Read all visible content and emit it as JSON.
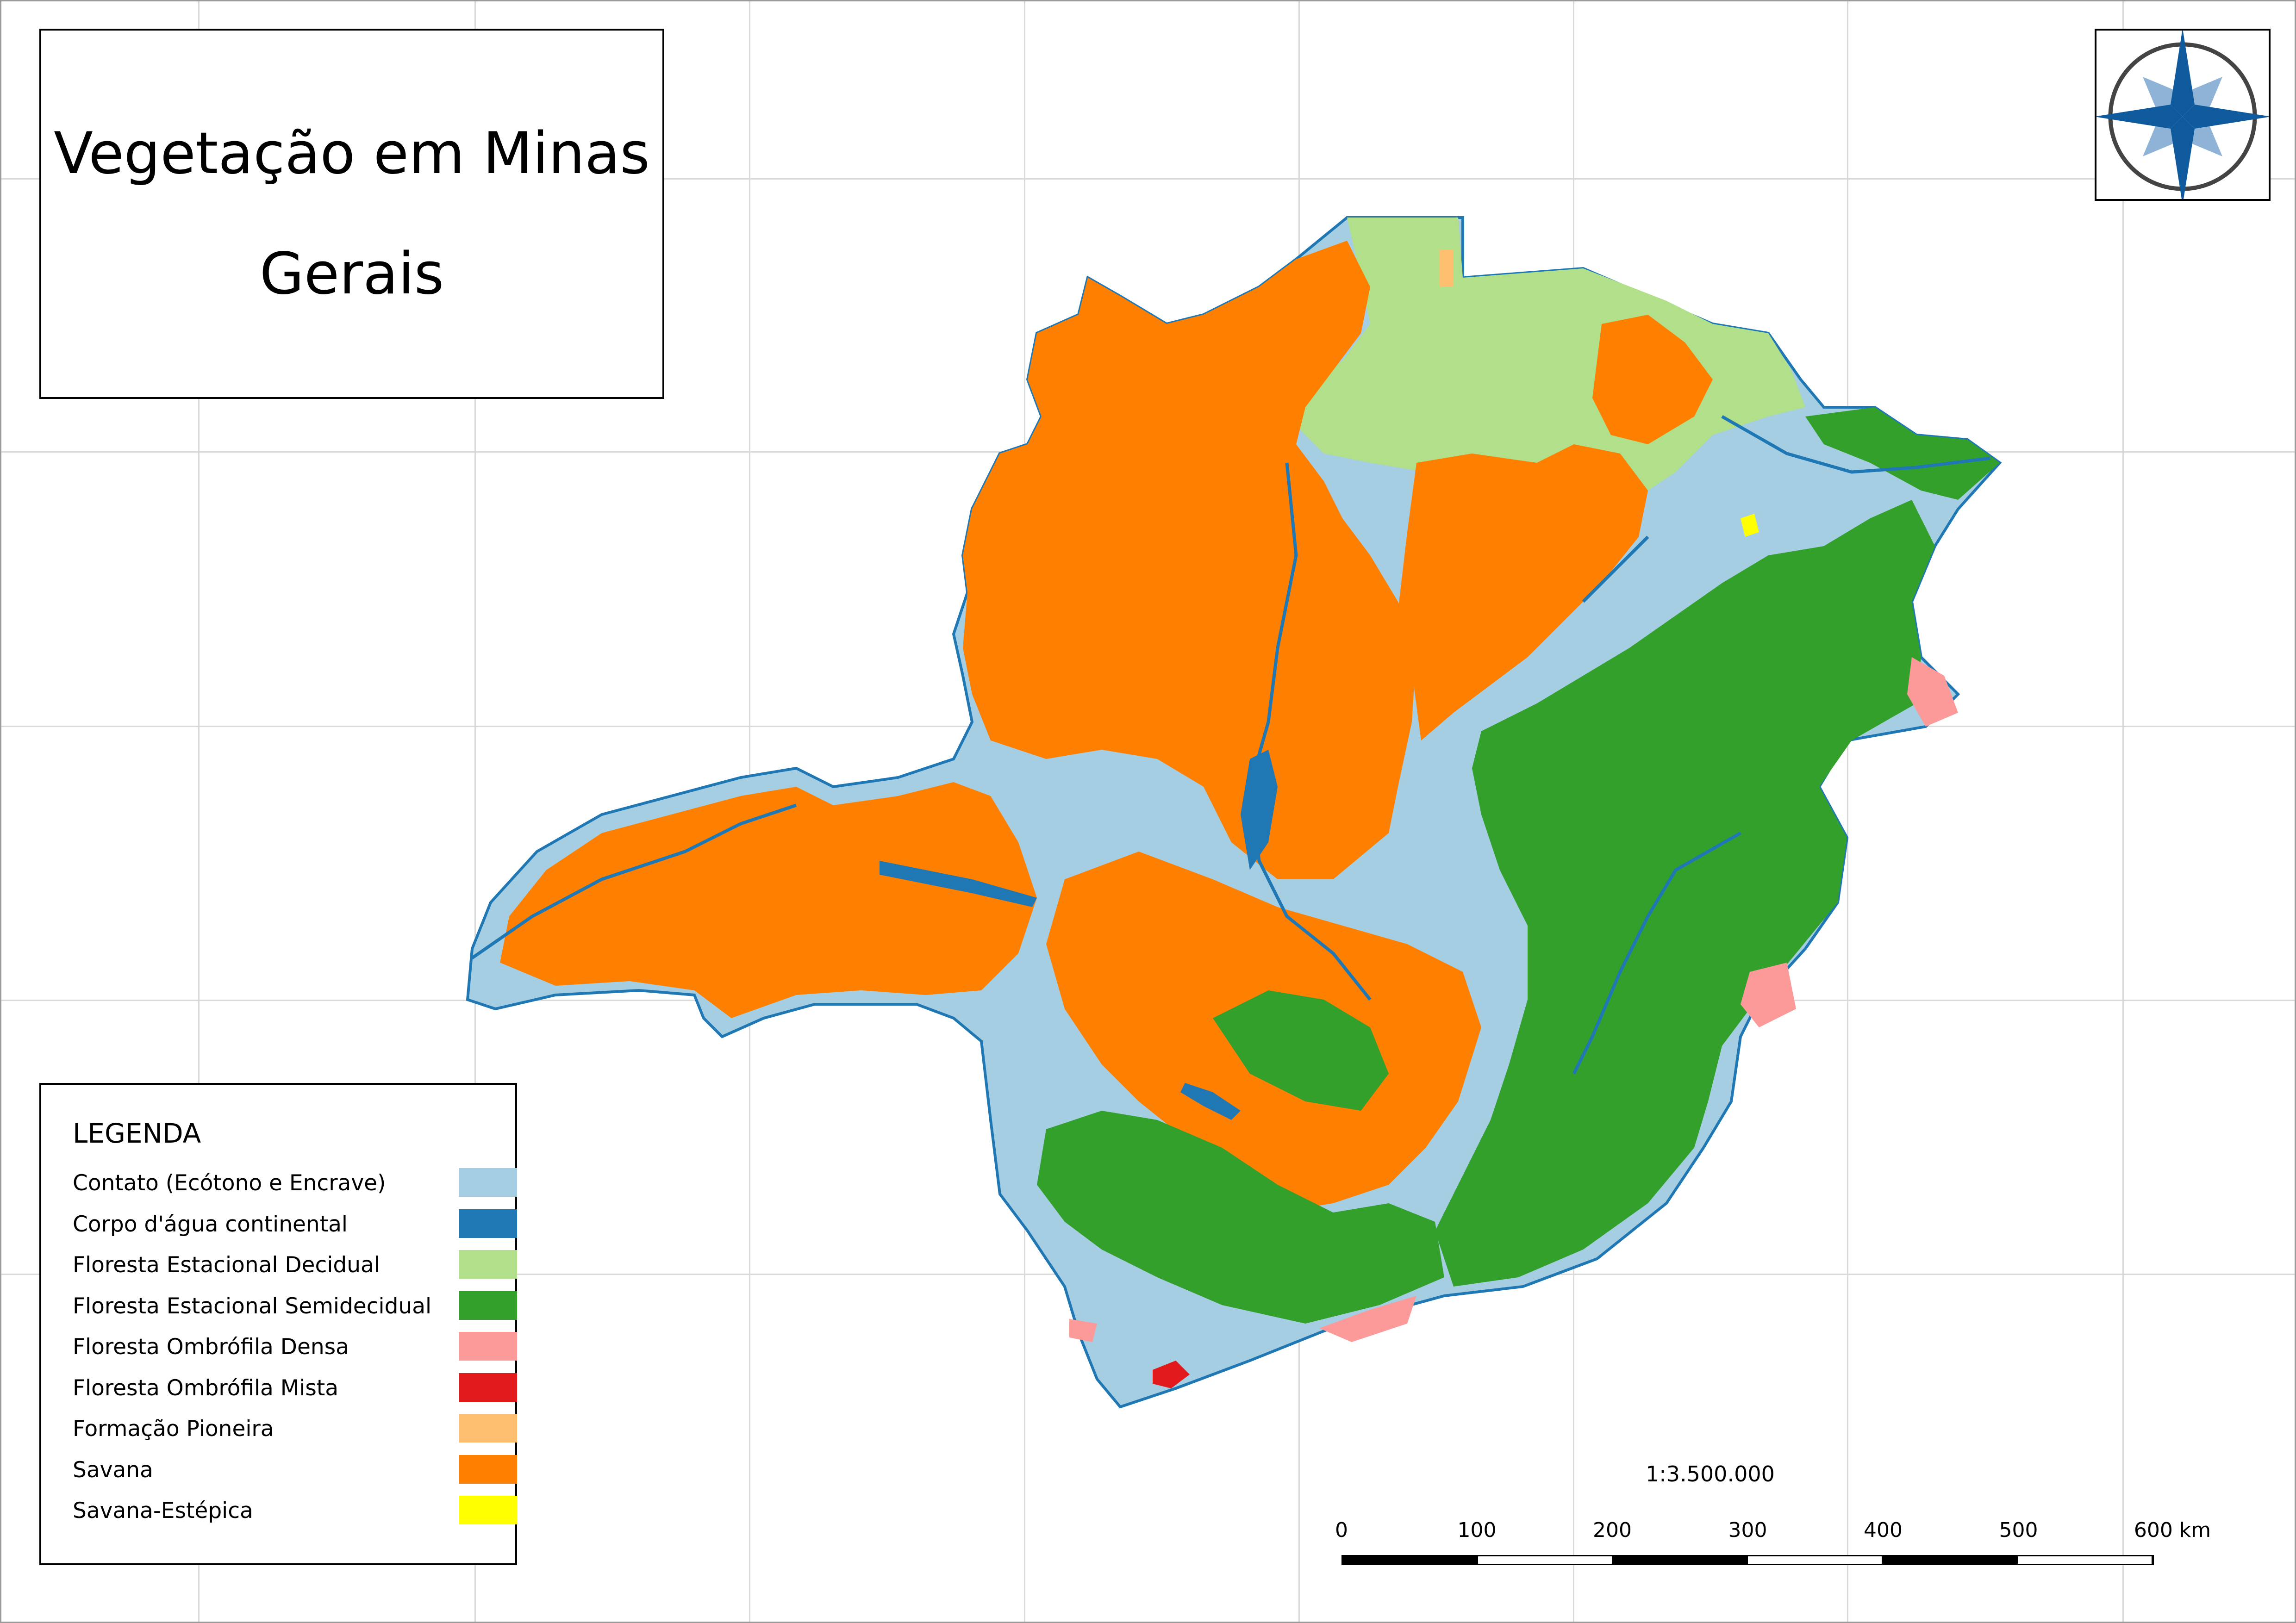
{
  "title": {
    "line1": "Vegetação em Minas",
    "line2": "Gerais"
  },
  "legend": {
    "title": "LEGENDA",
    "items": [
      {
        "label": "Contato (Ecótono e Encrave)",
        "color": "#a6cee3"
      },
      {
        "label": "Corpo d'água continental",
        "color": "#1f78b4"
      },
      {
        "label": "Floresta Estacional Decidual",
        "color": "#b2df8a"
      },
      {
        "label": "Floresta Estacional Semidecidual",
        "color": "#33a02c"
      },
      {
        "label": "Floresta Ombrófila Densa",
        "color": "#fb9a99"
      },
      {
        "label": "Floresta Ombrófila Mista",
        "color": "#e31a1c"
      },
      {
        "label": "Formação Pioneira",
        "color": "#fdbf6f"
      },
      {
        "label": "Savana",
        "color": "#ff7f00"
      },
      {
        "label": "Savana-Estépica",
        "color": "#ffff00"
      }
    ]
  },
  "scale": {
    "ratio": "1:3.500.000",
    "ticks": [
      "0",
      "100",
      "200",
      "300",
      "400",
      "500",
      "600 km"
    ]
  },
  "north_arrow": {
    "icon": "compass-rose-icon",
    "colors": {
      "main": "#0e5a9c",
      "secondary": "#8fb3d6",
      "ring": "#444444"
    }
  }
}
